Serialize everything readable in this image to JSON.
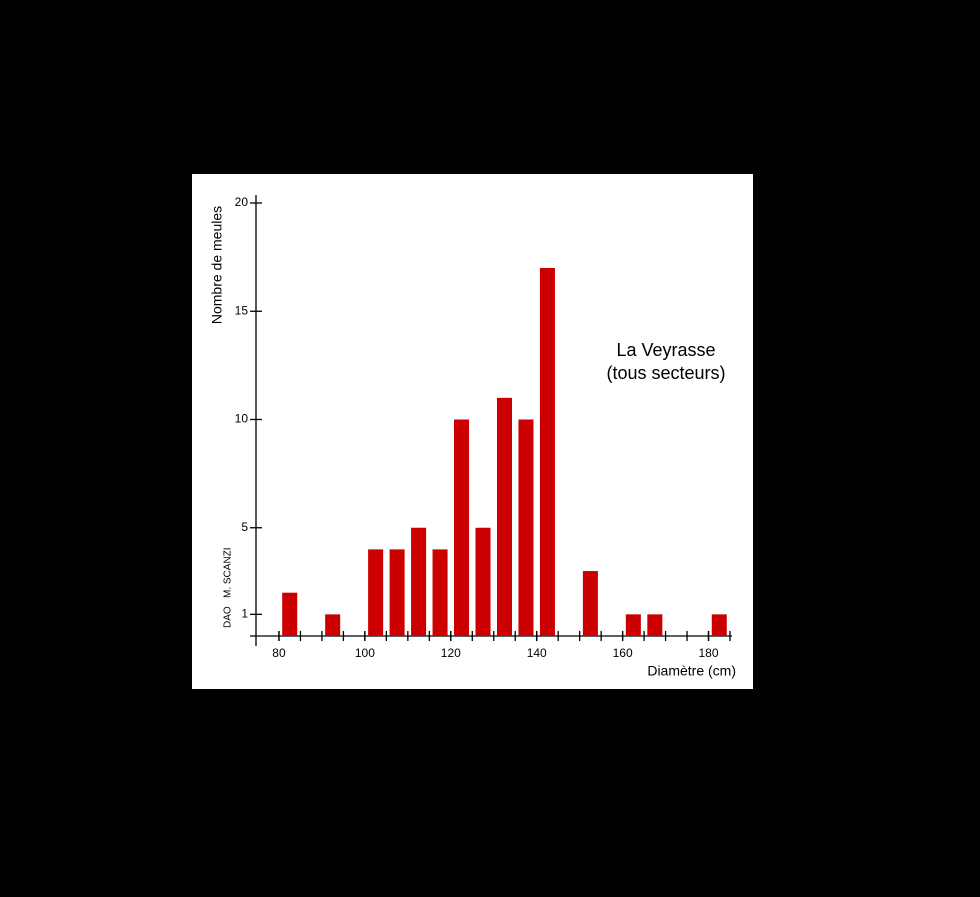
{
  "chart_data": {
    "type": "histogram",
    "title": "La Veyrasse",
    "subtitle": "(tous secteurs)",
    "x_label": "Diamètre (cm)",
    "y_label": "Nombre de meules",
    "annotation": "DAO   M. SCANZI",
    "bins": [
      80,
      85,
      90,
      95,
      100,
      105,
      110,
      115,
      120,
      125,
      130,
      135,
      140,
      145,
      150,
      155,
      160,
      165,
      170,
      175,
      180,
      185
    ],
    "values": [
      2,
      0,
      1,
      0,
      4,
      4,
      5,
      4,
      10,
      5,
      11,
      10,
      17,
      0,
      3,
      0,
      1,
      1,
      0,
      0,
      1
    ],
    "color": "#cc0000",
    "xlim": [
      75,
      185
    ],
    "xticks": [
      80,
      100,
      120,
      140,
      160,
      180
    ],
    "ylim": [
      0,
      20
    ],
    "yticks": [
      1,
      5,
      10,
      15,
      20
    ]
  }
}
